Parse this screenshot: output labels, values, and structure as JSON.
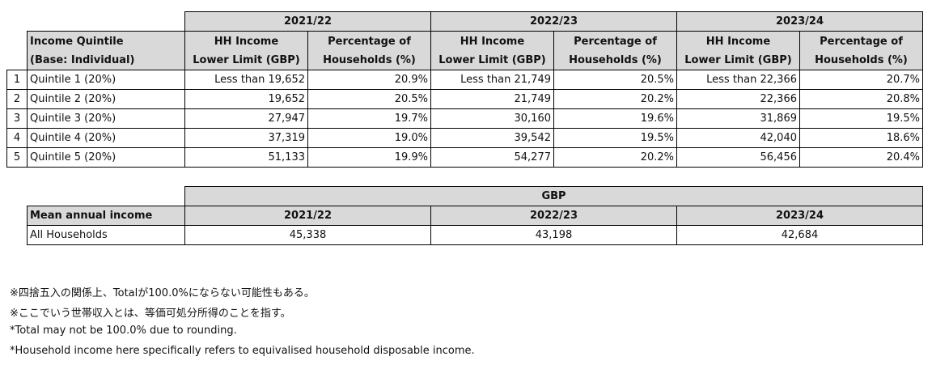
{
  "quintile_table": {
    "year_headers": [
      "2021/22",
      "2022/23",
      "2023/24"
    ],
    "label_header": [
      "Income Quintile",
      "(Base: Individual)"
    ],
    "column_headers": [
      [
        "HH Income",
        "Lower Limit (GBP)"
      ],
      [
        "Percentage of",
        "Households (%)"
      ],
      [
        "HH Income",
        "Lower Limit (GBP)"
      ],
      [
        "Percentage of",
        "Households (%)"
      ],
      [
        "HH Income",
        "Lower Limit (GBP)"
      ],
      [
        "Percentage of",
        "Households (%)"
      ]
    ],
    "rows": [
      [
        "1",
        "Quintile 1 (20%)",
        "Less than 19,652",
        "20.9%",
        "Less than 21,749",
        "20.5%",
        "Less than 22,366",
        "20.7%"
      ],
      [
        "2",
        "Quintile 2 (20%)",
        "19,652",
        "20.5%",
        "21,749",
        "20.2%",
        "22,366",
        "20.8%"
      ],
      [
        "3",
        "Quintile 3 (20%)",
        "27,947",
        "19.7%",
        "30,160",
        "19.6%",
        "31,869",
        "19.5%"
      ],
      [
        "4",
        "Quintile 4 (20%)",
        "37,319",
        "19.0%",
        "39,542",
        "19.5%",
        "42,040",
        "18.6%"
      ],
      [
        "5",
        "Quintile 5 (20%)",
        "51,133",
        "19.9%",
        "54,277",
        "20.2%",
        "56,456",
        "20.4%"
      ]
    ]
  },
  "mean_table": {
    "unit_header": "GBP",
    "label_header": "Mean annual income",
    "year_headers": [
      "2021/22",
      "2022/23",
      "2023/24"
    ],
    "rows": [
      [
        "All Households",
        "45,338",
        "43,198",
        "42,684"
      ]
    ]
  },
  "notes": [
    "※四捨五入の関係上、Totalが100.0%にならない可能性もある。",
    "※ここでいう世帯収入とは、等価可処分所得のことを指す。",
    "*Total may not be 100.0% due to rounding.",
    "*Household income here specifically refers to  equivalised household disposable income."
  ]
}
